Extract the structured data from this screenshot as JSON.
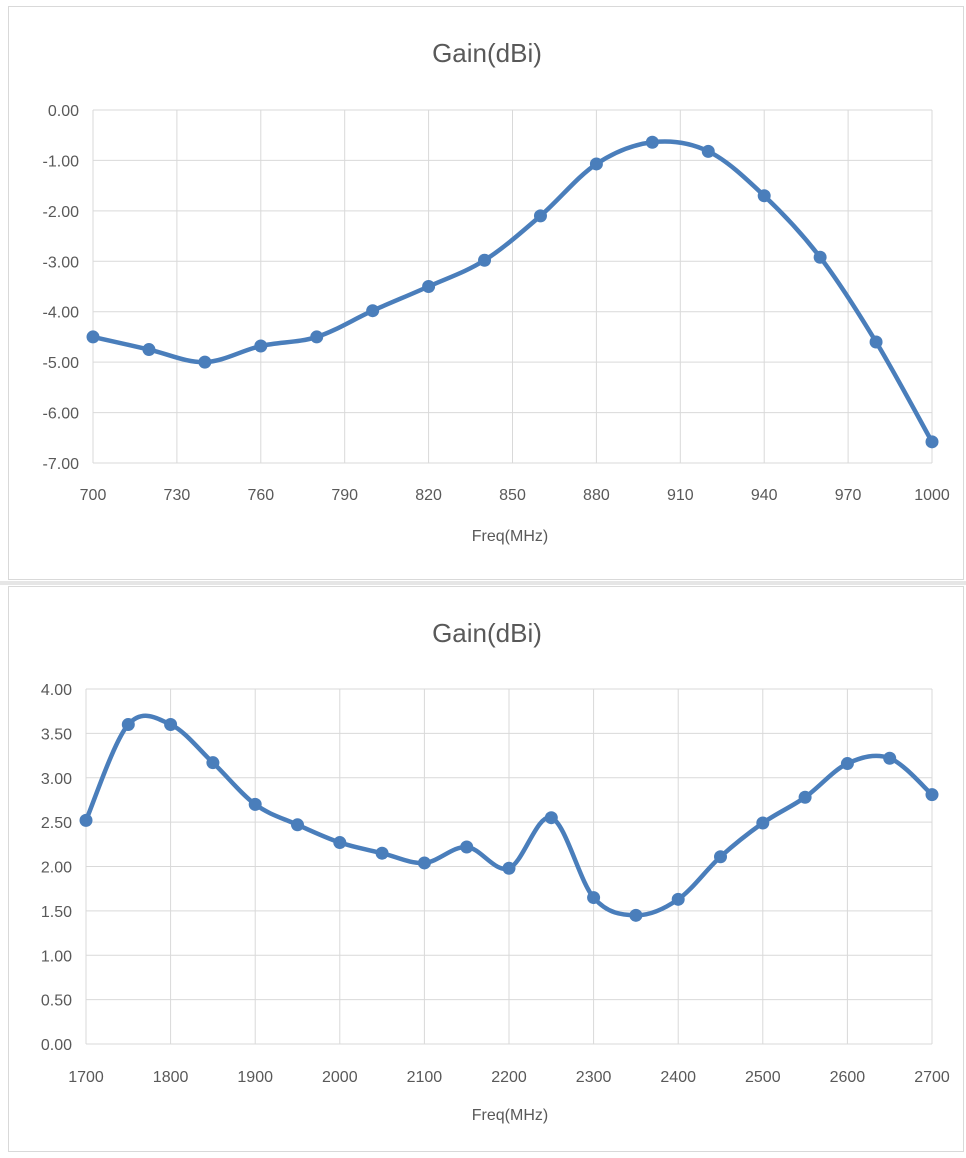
{
  "colors": {
    "series": "#4a7ebb",
    "grid": "#d9d9d9",
    "text": "#595959"
  },
  "chart_data": [
    {
      "type": "line",
      "smooth": true,
      "markers": true,
      "title": "Gain(dBi)",
      "xlabel": "Freq(MHz)",
      "ylabel": "",
      "xlim": [
        700,
        1000
      ],
      "ylim": [
        -7,
        0
      ],
      "x_ticks": [
        "700",
        "730",
        "760",
        "790",
        "820",
        "850",
        "880",
        "910",
        "940",
        "970",
        "1000"
      ],
      "y_ticks": [
        "0.00",
        "-1.00",
        "-2.00",
        "-3.00",
        "-4.00",
        "-5.00",
        "-6.00",
        "-7.00"
      ],
      "grid": true,
      "legend": "none",
      "series": [
        {
          "x": [
            700,
            720,
            740,
            760,
            780,
            800,
            820,
            840,
            860,
            880,
            900,
            920,
            940,
            960,
            980,
            1000
          ],
          "y": [
            -4.5,
            -4.75,
            -5.0,
            -4.68,
            -4.5,
            -3.98,
            -3.5,
            -2.98,
            -2.1,
            -1.07,
            -0.64,
            -0.82,
            -1.7,
            -2.92,
            -4.6,
            -6.58
          ]
        }
      ]
    },
    {
      "type": "line",
      "smooth": true,
      "markers": true,
      "title": "Gain(dBi)",
      "xlabel": "Freq(MHz)",
      "ylabel": "",
      "xlim": [
        1700,
        2700
      ],
      "ylim": [
        0,
        4
      ],
      "x_ticks": [
        "1700",
        "1800",
        "1900",
        "2000",
        "2100",
        "2200",
        "2300",
        "2400",
        "2500",
        "2600",
        "2700"
      ],
      "y_ticks": [
        "4.00",
        "3.50",
        "3.00",
        "2.50",
        "2.00",
        "1.50",
        "1.00",
        "0.50",
        "0.00"
      ],
      "grid": true,
      "legend": "none",
      "series": [
        {
          "x": [
            1700,
            1750,
            1800,
            1850,
            1900,
            1950,
            2000,
            2050,
            2100,
            2150,
            2200,
            2250,
            2300,
            2350,
            2400,
            2450,
            2500,
            2550,
            2600,
            2650,
            2700
          ],
          "y": [
            2.52,
            3.6,
            3.6,
            3.17,
            2.7,
            2.47,
            2.27,
            2.15,
            2.04,
            2.22,
            1.98,
            2.55,
            1.65,
            1.45,
            1.63,
            2.11,
            2.49,
            2.78,
            3.16,
            3.22,
            2.81
          ]
        }
      ]
    }
  ]
}
